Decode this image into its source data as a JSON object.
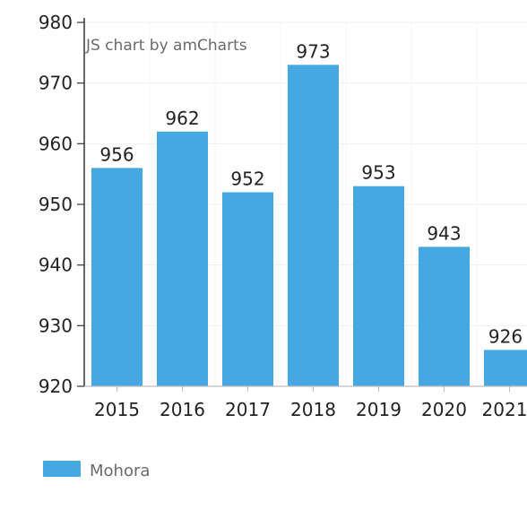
{
  "credit": "JS chart by amCharts",
  "chart_data": {
    "type": "bar",
    "categories": [
      "2015",
      "2016",
      "2017",
      "2018",
      "2019",
      "2020",
      "2021"
    ],
    "series": [
      {
        "name": "Mohora",
        "values": [
          956,
          962,
          952,
          973,
          953,
          943,
          926
        ]
      }
    ],
    "value_labels": [
      "956",
      "962",
      "952",
      "973",
      "953",
      "943",
      "926"
    ],
    "y_ticks": [
      "920",
      "930",
      "940",
      "950",
      "960",
      "970",
      "980"
    ],
    "ylim": [
      920,
      980
    ],
    "grid": true,
    "legend": "bottom-left",
    "bar_color": "#45a8e2",
    "title": "",
    "xlabel": "",
    "ylabel": ""
  }
}
